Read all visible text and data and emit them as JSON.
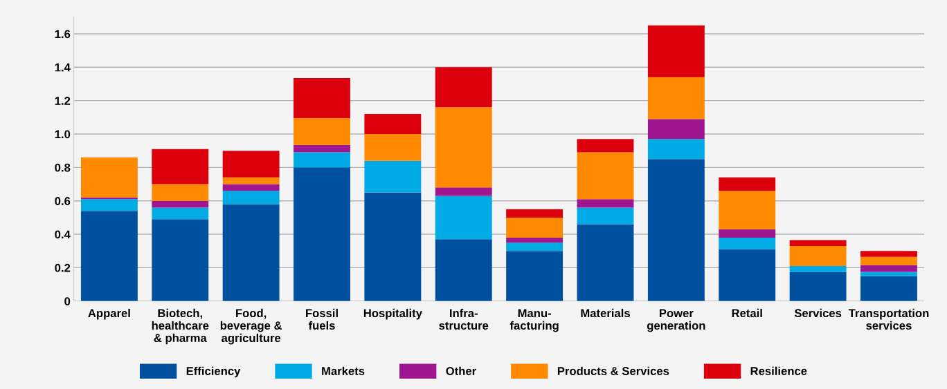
{
  "chart_data": {
    "type": "bar",
    "stacked": true,
    "categories": [
      "Apparel",
      "Biotech,\nhealthcare\n& pharma",
      "Food,\nbeverage &\nagriculture",
      "Fossil\nfuels",
      "Hospitality",
      "Infra-\nstructure",
      "Manu-\nfacturing",
      "Materials",
      "Power\ngeneration",
      "Retail",
      "Services",
      "Transportation\nservices"
    ],
    "series": [
      {
        "name": "Efficiency",
        "color": "#0050a0",
        "values": [
          0.54,
          0.49,
          0.58,
          0.8,
          0.65,
          0.37,
          0.3,
          0.46,
          0.85,
          0.31,
          0.175,
          0.15
        ]
      },
      {
        "name": "Markets",
        "color": "#00aae4",
        "values": [
          0.07,
          0.07,
          0.08,
          0.09,
          0.19,
          0.26,
          0.05,
          0.1,
          0.12,
          0.07,
          0.035,
          0.025
        ]
      },
      {
        "name": "Other",
        "color": "#9e1791",
        "values": [
          0.01,
          0.04,
          0.04,
          0.045,
          0,
          0.05,
          0.03,
          0.05,
          0.12,
          0.05,
          0,
          0.04
        ]
      },
      {
        "name": "Products & Services",
        "color": "#ff8a00",
        "values": [
          0.24,
          0.1,
          0.04,
          0.16,
          0.16,
          0.48,
          0.12,
          0.28,
          0.25,
          0.23,
          0.12,
          0.05
        ]
      },
      {
        "name": "Resilience",
        "color": "#dc000c",
        "values": [
          0,
          0.21,
          0.16,
          0.24,
          0.12,
          0.24,
          0.05,
          0.08,
          0.31,
          0.08,
          0.035,
          0.035
        ]
      }
    ],
    "ylim": [
      0,
      1.7
    ],
    "yticks": [
      0,
      0.2,
      0.4,
      0.6,
      0.8,
      {
        "value": 1,
        "label": "1.0"
      },
      1.2,
      1.4,
      1.6
    ],
    "grid": "y",
    "legend": "bottom"
  }
}
